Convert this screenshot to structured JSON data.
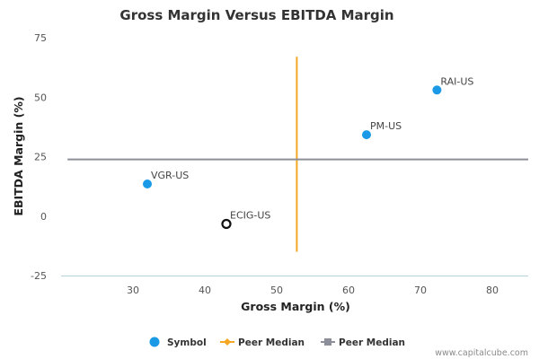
{
  "chart_data": {
    "type": "scatter",
    "title": "Gross Margin Versus EBITDA Margin",
    "xlabel": "Gross Margin (%)",
    "ylabel": "EBITDA Margin (%)",
    "xlim": [
      20,
      85
    ],
    "ylim": [
      -25,
      75
    ],
    "xticks": [
      30,
      40,
      50,
      60,
      70,
      80
    ],
    "yticks": [
      -25,
      0,
      25,
      50,
      75
    ],
    "grid": false,
    "legend_position": "bottom",
    "series": [
      {
        "name": "Symbol",
        "color": "#1a9ae6",
        "points": [
          {
            "label": "RAI-US",
            "x": 72.3,
            "y": 53.0,
            "style": "filled"
          },
          {
            "label": "PM-US",
            "x": 62.5,
            "y": 34.2,
            "style": "filled"
          },
          {
            "label": "VGR-US",
            "x": 32.0,
            "y": 13.5,
            "style": "filled"
          },
          {
            "label": "ECIG-US",
            "x": 43.0,
            "y": -3.3,
            "style": "hollow"
          }
        ]
      },
      {
        "name": "Peer Median",
        "color": "#f5a623",
        "orientation": "vertical",
        "x": 52.8,
        "y_range": [
          -15,
          67
        ]
      },
      {
        "name": "Peer Median",
        "color": "#8c8f99",
        "orientation": "horizontal",
        "y": 23.8,
        "x_range": [
          20.9,
          85
        ]
      }
    ]
  },
  "credit": "www.capitalcube.com"
}
